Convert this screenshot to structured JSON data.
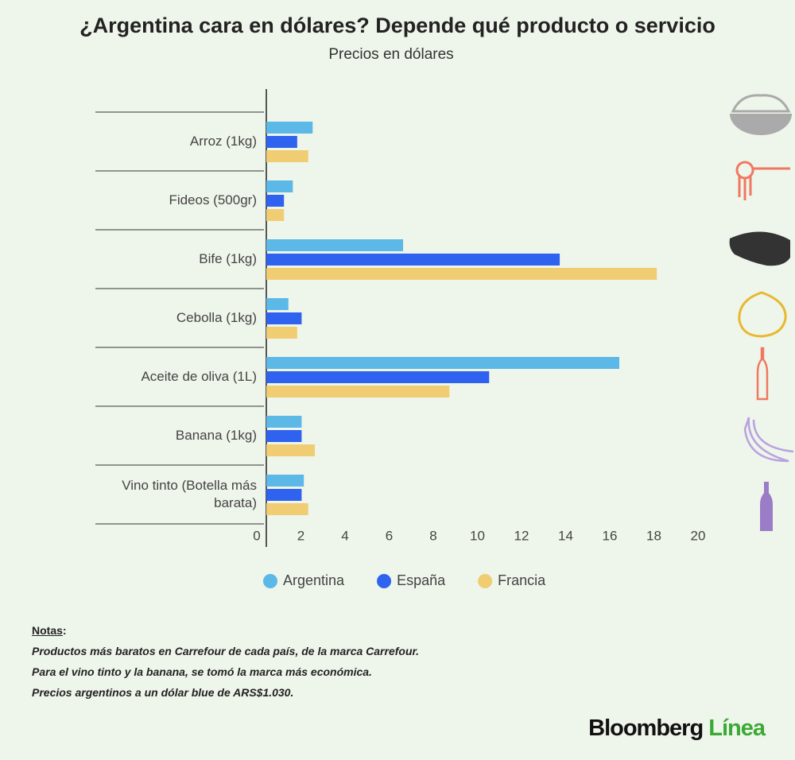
{
  "chart_data": {
    "type": "hbar",
    "title": "¿Argentina cara en dólares? Depende qué producto o servicio",
    "subtitle": "Precios en dólares",
    "categories": [
      "Arroz (1kg)",
      "Fideos (500gr)",
      "Bife (1kg)",
      "Cebolla (1kg)",
      "Aceite de oliva (1L)",
      "Banana (1kg)",
      "Vino tinto (Botella más barata)"
    ],
    "series": [
      {
        "name": "Argentina",
        "color": "#5cb8e6",
        "values": [
          2.1,
          1.2,
          6.2,
          1.0,
          16.0,
          1.6,
          1.7
        ]
      },
      {
        "name": "España",
        "color": "#2f62ee",
        "values": [
          1.4,
          0.8,
          13.3,
          1.6,
          10.1,
          1.6,
          1.6
        ]
      },
      {
        "name": "Francia",
        "color": "#f0cd72",
        "values": [
          1.9,
          0.8,
          17.7,
          1.4,
          8.3,
          2.2,
          1.9
        ]
      }
    ],
    "xlim": [
      0,
      20
    ],
    "xticks": [
      0,
      2,
      4,
      6,
      8,
      10,
      12,
      14,
      16,
      18,
      20
    ],
    "legend": "bottom"
  },
  "notes": {
    "title": "Notas",
    "lines": [
      "Productos más baratos en Carrefour de cada país, de la marca Carrefour.",
      "Para el vino tinto y la banana, se tomó la marca más económica.",
      "Precios argentinos a un dólar blue de ARS$1.030."
    ]
  },
  "brand": [
    "Bloomberg",
    "Línea"
  ]
}
